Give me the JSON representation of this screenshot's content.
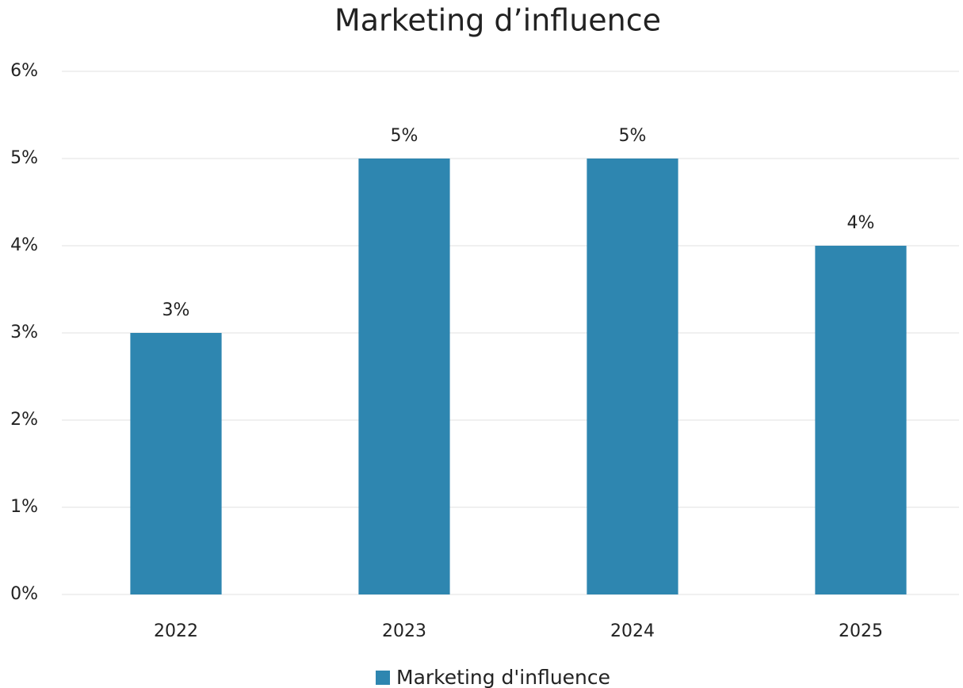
{
  "chart_data": {
    "type": "bar",
    "title": "Marketing d’influence",
    "categories": [
      "2022",
      "2023",
      "2024",
      "2025"
    ],
    "series": [
      {
        "name": "Marketing d'influence",
        "color": "#2e86b0",
        "values": [
          3,
          5,
          5,
          4
        ],
        "value_labels": [
          "3%",
          "5%",
          "5%",
          "4%"
        ]
      }
    ],
    "ylim": [
      0,
      6
    ],
    "yticks": [
      {
        "value": 0,
        "label": "0%"
      },
      {
        "value": 1,
        "label": "1%"
      },
      {
        "value": 2,
        "label": "2%"
      },
      {
        "value": 3,
        "label": "3%"
      },
      {
        "value": 4,
        "label": "4%"
      },
      {
        "value": 5,
        "label": "5%"
      },
      {
        "value": 6,
        "label": "6%"
      }
    ],
    "grid": true,
    "legend": "bottom"
  }
}
